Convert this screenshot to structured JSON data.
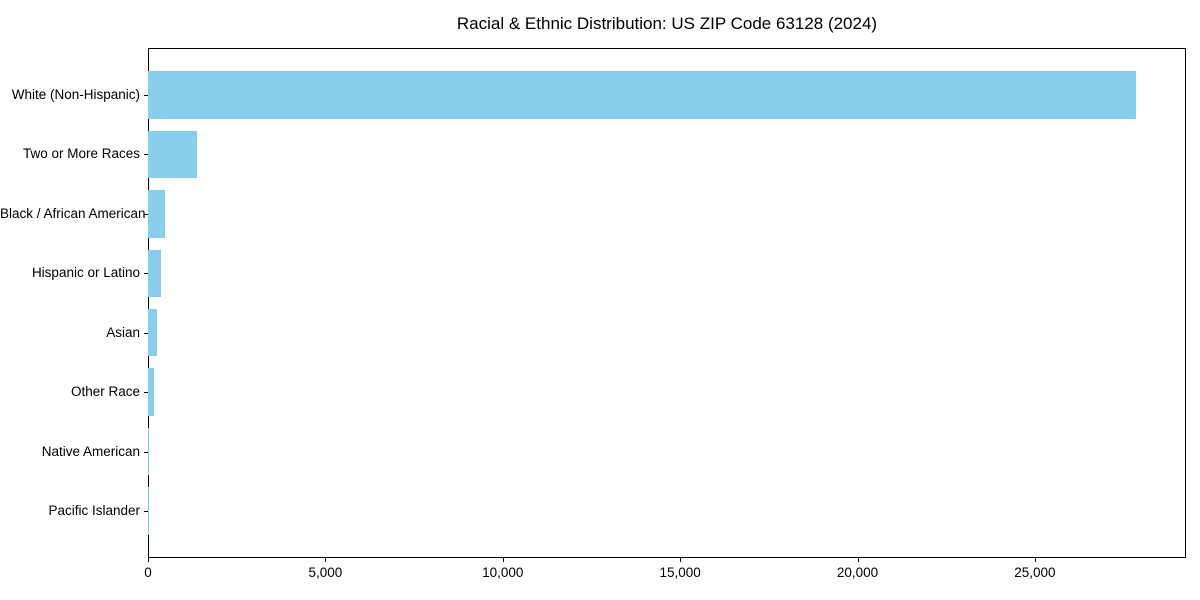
{
  "chart_data": {
    "type": "bar",
    "orientation": "horizontal",
    "title": "Racial & Ethnic Distribution: US ZIP Code 63128 (2024)",
    "categories": [
      "White (Non-Hispanic)",
      "Two or More Races",
      "Black / African American",
      "Hispanic or Latino",
      "Asian",
      "Other Race",
      "Native American",
      "Pacific Islander"
    ],
    "values": [
      27850,
      1390,
      480,
      370,
      260,
      160,
      30,
      10
    ],
    "xlabel": "",
    "ylabel": "",
    "xlim": [
      0,
      29260
    ],
    "x_ticks": [
      0,
      5000,
      10000,
      15000,
      20000,
      25000
    ],
    "x_tick_labels": [
      "0",
      "5,000",
      "10,000",
      "15,000",
      "20,000",
      "25,000"
    ],
    "grid": false,
    "legend": false,
    "bar_color": "#87CEEB",
    "axis_color": "#000000",
    "text_color": "#000000",
    "background_color": "#FFFFFF"
  }
}
